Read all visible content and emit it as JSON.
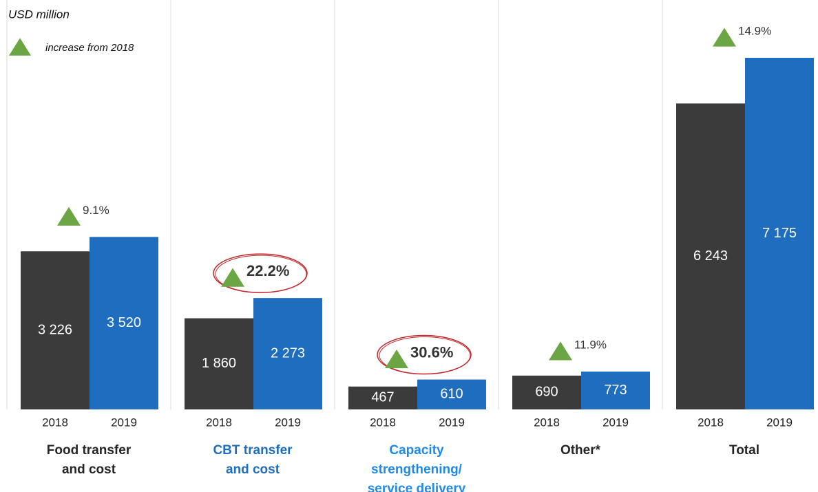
{
  "chart_data": {
    "type": "bar",
    "unit_label": "USD million",
    "legend_text": "increase from 2018",
    "categories": [
      "Food transfer\nand cost",
      "CBT transfer\nand cost",
      "Capacity\nstrengthening/\nservice delivery",
      "Other*",
      "Total"
    ],
    "category_colors": [
      "#262626",
      "#1f6dbf",
      "#1f8ae6",
      "#262626",
      "#262626"
    ],
    "series": [
      {
        "name": "2018",
        "color": "#3b3b3b",
        "values": [
          3226,
          1860,
          467,
          690,
          6243
        ],
        "value_labels": [
          "3 226",
          "1 860",
          "467",
          "690",
          "6 243"
        ]
      },
      {
        "name": "2019",
        "color": "#1f6dbf",
        "values": [
          3520,
          2273,
          610,
          773,
          7175
        ],
        "value_labels": [
          "3 520",
          "2 273",
          "610",
          "773",
          "7 175"
        ]
      }
    ],
    "annotations": [
      "9.1%",
      "22.2%",
      "30.6%",
      "11.9%",
      "14.9%"
    ],
    "highlight": [
      false,
      true,
      true,
      false,
      false
    ],
    "marker_color": "#6ca644",
    "highlight_color": "#c0282d"
  }
}
